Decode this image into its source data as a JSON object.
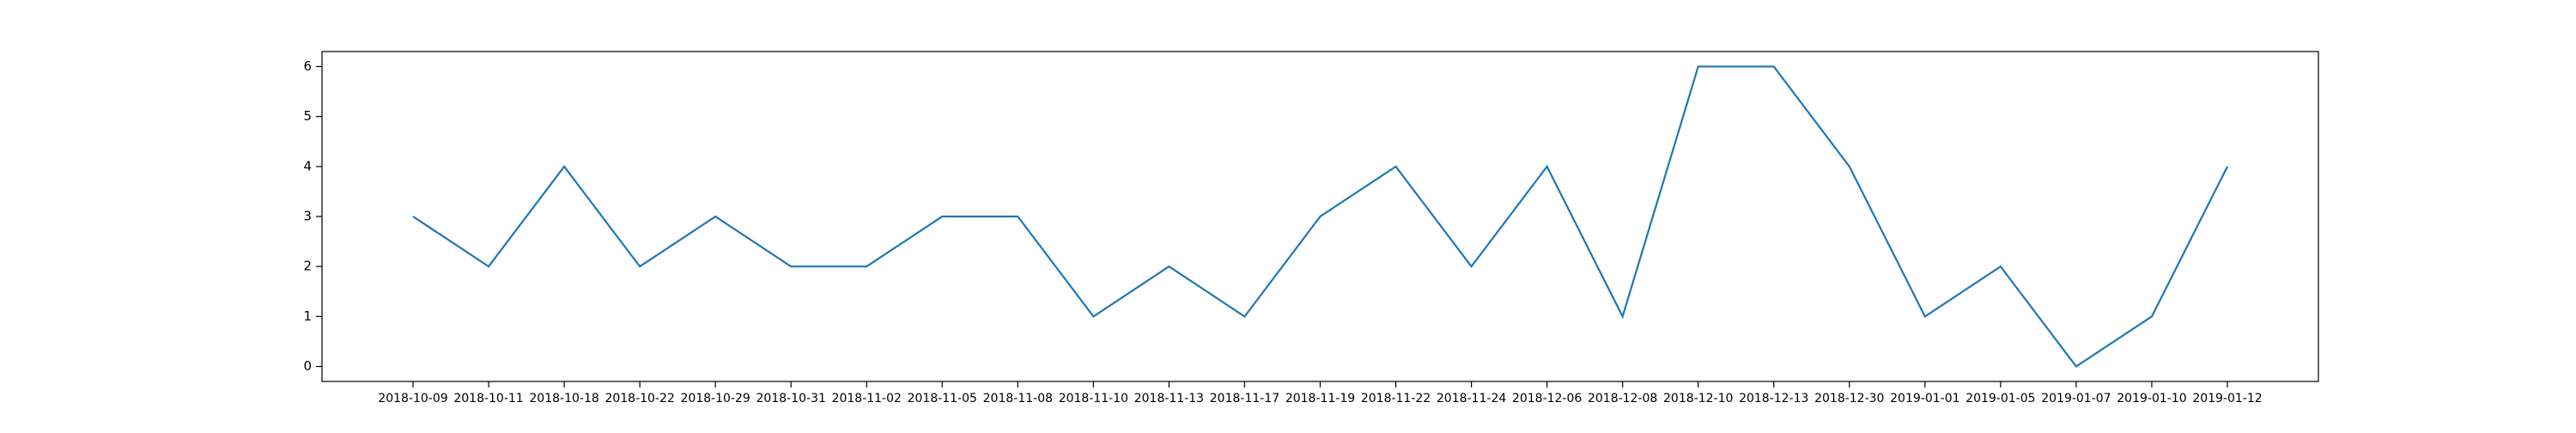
{
  "chart_data": {
    "type": "line",
    "title": "",
    "xlabel": "",
    "ylabel": "",
    "categories": [
      "2018-10-09",
      "2018-10-11",
      "2018-10-18",
      "2018-10-22",
      "2018-10-29",
      "2018-10-31",
      "2018-11-02",
      "2018-11-05",
      "2018-11-08",
      "2018-11-10",
      "2018-11-13",
      "2018-11-17",
      "2018-11-19",
      "2018-11-22",
      "2018-11-24",
      "2018-12-06",
      "2018-12-08",
      "2018-12-10",
      "2018-12-13",
      "2018-12-30",
      "2019-01-01",
      "2019-01-05",
      "2019-01-07",
      "2019-01-10",
      "2019-01-12"
    ],
    "series": [
      {
        "values": [
          3,
          2,
          4,
          2,
          3,
          2,
          2,
          3,
          3,
          1,
          2,
          1,
          3,
          4,
          2,
          4,
          1,
          6,
          6,
          4,
          1,
          2,
          0,
          1,
          4
        ],
        "color": "#1f77b4"
      }
    ],
    "yticks": [
      "0",
      "1",
      "2",
      "3",
      "4",
      "5",
      "6"
    ],
    "ylim": [
      -0.3,
      6.3
    ],
    "grid": false,
    "legend": "none"
  }
}
